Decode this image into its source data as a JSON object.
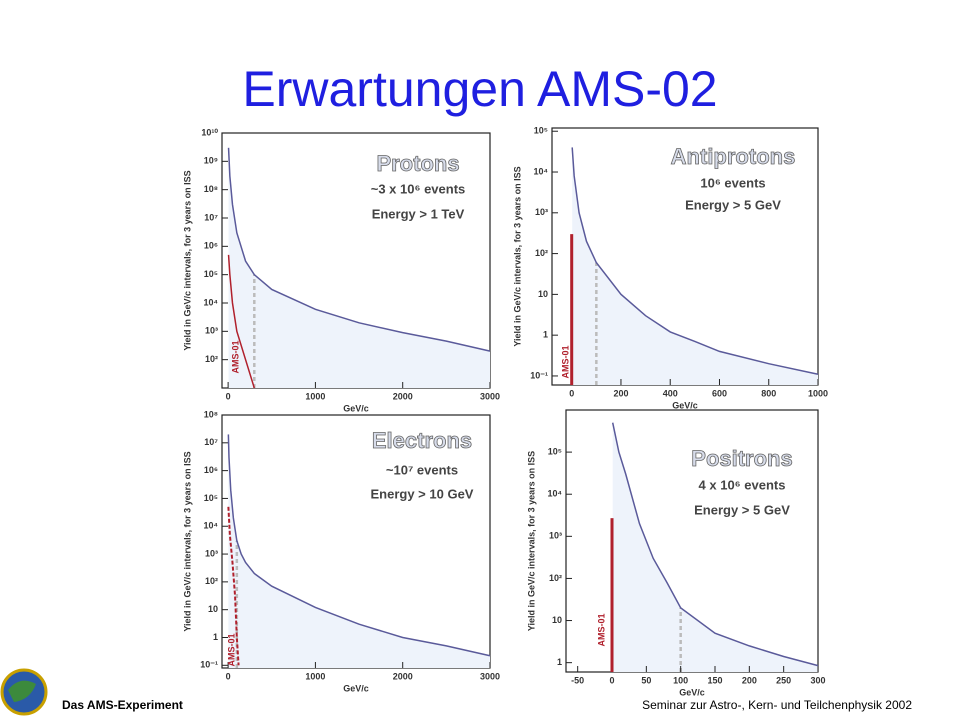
{
  "title": "Erwartungen AMS-02",
  "footer": {
    "left": "Das AMS-Experiment",
    "right": "Seminar zur Astro-, Kern- und Teilchenphysik 2002"
  },
  "chart_data": [
    {
      "type": "line",
      "log_y": true,
      "title": "Protons",
      "annotations": [
        "~3 x 10⁶ events",
        "Energy > 1 TeV"
      ],
      "xlabel": "GeV/c",
      "ylabel": "Yield in GeV/c intervals, for 3 years on ISS",
      "xlim": [
        -70,
        3000
      ],
      "ylim": [
        10,
        10000000000
      ],
      "xticks": [
        0,
        1000,
        2000,
        3000
      ],
      "yticks": [
        {
          "value": 100,
          "label": "10²"
        },
        {
          "value": 1000,
          "label": "10³"
        },
        {
          "value": 10000,
          "label": "10⁴"
        },
        {
          "value": 100000,
          "label": "10⁵"
        },
        {
          "value": 1000000,
          "label": "10⁶"
        },
        {
          "value": 10000000,
          "label": "10⁷"
        },
        {
          "value": 100000000,
          "label": "10⁸"
        },
        {
          "value": 1000000000,
          "label": "10⁹"
        },
        {
          "value": 10000000000,
          "label": "10¹⁰"
        }
      ],
      "cutoff": 300,
      "series": [
        {
          "color": "#5a5a9a",
          "kind": "line",
          "x": [
            5,
            20,
            50,
            100,
            200,
            300,
            500,
            1000,
            1500,
            2000,
            2500,
            3000
          ],
          "values": [
            3000000000,
            300000000,
            30000000,
            3000000,
            300000,
            100000,
            30000,
            6000,
            2000,
            900,
            450,
            200
          ]
        },
        {
          "name": "AMS-01",
          "color": "#b0202c",
          "kind": "line",
          "x": [
            5,
            20,
            50,
            100,
            200,
            300
          ],
          "values": [
            500000,
            100000,
            10000,
            1000,
            100,
            10
          ]
        }
      ]
    },
    {
      "type": "line",
      "log_y": true,
      "title": "Antiprotons",
      "annotations": [
        "10⁶ events",
        "Energy > 5 GeV"
      ],
      "xlabel": "GeV/c",
      "ylabel": "Yield in GeV/c intervals, for 3 years on ISS",
      "xlim": [
        -80,
        1000
      ],
      "ylim": [
        0.06,
        120000
      ],
      "xticks": [
        0,
        200,
        400,
        600,
        800,
        1000
      ],
      "yticks": [
        {
          "value": 0.1,
          "label": "10⁻¹"
        },
        1,
        10,
        {
          "value": 100,
          "label": "10²"
        },
        {
          "value": 1000,
          "label": "10³"
        },
        {
          "value": 10000,
          "label": "10⁴"
        },
        {
          "value": 100000,
          "label": "10⁵"
        }
      ],
      "cutoff": 100,
      "series": [
        {
          "color": "#5a5a9a",
          "kind": "line",
          "x": [
            2,
            10,
            30,
            60,
            100,
            200,
            300,
            400,
            500,
            600,
            800,
            1000
          ],
          "values": [
            40000,
            8000,
            1000,
            200,
            60,
            10,
            3,
            1.2,
            0.7,
            0.4,
            0.2,
            0.11
          ]
        },
        {
          "name": "AMS-01",
          "color": "#b0202c",
          "kind": "bar",
          "x": [
            0
          ],
          "values": [
            300
          ]
        }
      ]
    },
    {
      "type": "line",
      "log_y": true,
      "title": "Electrons",
      "annotations": [
        "~10⁷ events",
        "Energy > 10 GeV"
      ],
      "xlabel": "GeV/c",
      "ylabel": "Yield in GeV/c intervals, for 3 years on ISS",
      "xlim": [
        -70,
        3000
      ],
      "ylim": [
        0.08,
        100000000
      ],
      "xticks": [
        0,
        1000,
        2000,
        3000
      ],
      "yticks": [
        {
          "value": 0.1,
          "label": "10⁻¹"
        },
        1,
        10,
        {
          "value": 100,
          "label": "10²"
        },
        {
          "value": 1000,
          "label": "10³"
        },
        {
          "value": 10000,
          "label": "10⁴"
        },
        {
          "value": 100000,
          "label": "10⁵"
        },
        {
          "value": 1000000,
          "label": "10⁶"
        },
        {
          "value": 10000000,
          "label": "10⁷"
        },
        {
          "value": 100000000,
          "label": "10⁸"
        }
      ],
      "cutoff": 100,
      "series": [
        {
          "color": "#5a5a9a",
          "kind": "line",
          "x": [
            3,
            10,
            30,
            60,
            100,
            150,
            200,
            300,
            500,
            1000,
            1500,
            2000,
            2500,
            3000
          ],
          "values": [
            20000000,
            3000000,
            200000,
            20000,
            3000,
            1000,
            500,
            200,
            70,
            12,
            3,
            1,
            0.5,
            0.22
          ]
        },
        {
          "name": "AMS-01",
          "color": "#b0202c",
          "kind": "dashed",
          "x": [
            3,
            20,
            50,
            80,
            100,
            120
          ],
          "values": [
            50000,
            5000,
            500,
            30,
            1,
            0.1
          ]
        }
      ]
    },
    {
      "type": "line",
      "log_y": true,
      "title": "Positrons",
      "annotations": [
        "4 x 10⁶ events",
        "Energy > 5 GeV"
      ],
      "xlabel": "GeV/c",
      "ylabel": "Yield in GeV/c intervals, for 3 years on ISS",
      "xlim": [
        -67,
        300
      ],
      "ylim": [
        0.6,
        1000000
      ],
      "xticks": [
        -50,
        0,
        50,
        100,
        150,
        200,
        250,
        300
      ],
      "yticks": [
        1,
        10,
        {
          "value": 100,
          "label": "10²"
        },
        {
          "value": 1000,
          "label": "10³"
        },
        {
          "value": 10000,
          "label": "10⁴"
        },
        {
          "value": 100000,
          "label": "10⁵"
        }
      ],
      "cutoff": 100,
      "series": [
        {
          "color": "#5a5a9a",
          "kind": "line",
          "x": [
            1,
            10,
            20,
            40,
            60,
            80,
            100,
            150,
            200,
            250,
            300
          ],
          "values": [
            500000,
            100000,
            30000,
            2000,
            300,
            80,
            20,
            5,
            2.5,
            1.4,
            0.85
          ]
        },
        {
          "name": "AMS-01",
          "color": "#b0202c",
          "kind": "bar",
          "x": [
            0
          ],
          "values": [
            2700
          ]
        }
      ]
    }
  ]
}
